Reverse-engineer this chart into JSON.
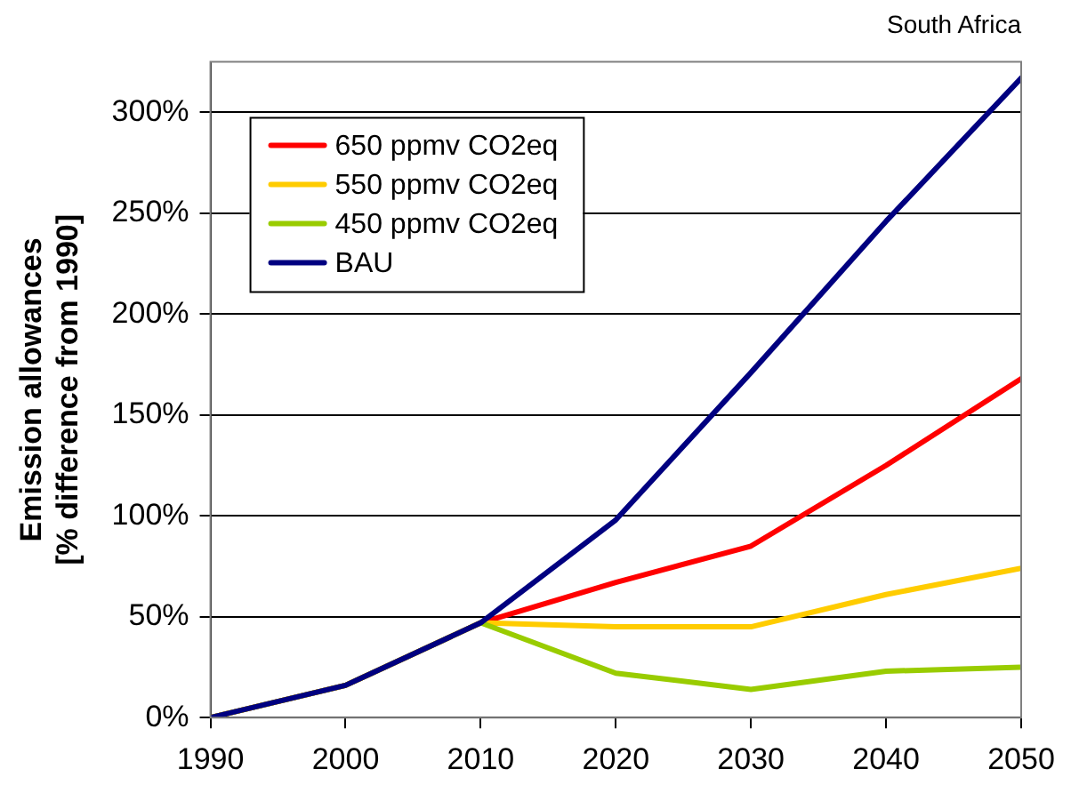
{
  "chart_data": {
    "type": "line",
    "title": "South Africa",
    "ylabel": "Emission allowances\n[% difference from 1990]",
    "x": [
      1990,
      2000,
      2010,
      2020,
      2030,
      2040,
      2050
    ],
    "series": [
      {
        "name": "650 ppmv CO2eq",
        "color": "#ff0000",
        "values": [
          0,
          16,
          47,
          67,
          85,
          125,
          168
        ]
      },
      {
        "name": "550 ppmv CO2eq",
        "color": "#ffcc00",
        "values": [
          0,
          16,
          47,
          45,
          45,
          61,
          74
        ]
      },
      {
        "name": "450 ppmv CO2eq",
        "color": "#99cc00",
        "values": [
          0,
          16,
          47,
          22,
          14,
          23,
          25
        ]
      },
      {
        "name": "BAU",
        "color": "#000080",
        "values": [
          0,
          16,
          47,
          98,
          171,
          246,
          317
        ]
      }
    ],
    "xlim": [
      1990,
      2050
    ],
    "xticks": [
      1990,
      2000,
      2010,
      2020,
      2030,
      2040,
      2050
    ],
    "ylim": [
      0,
      325
    ],
    "yticks": [
      {
        "value": 0,
        "label": "0%"
      },
      {
        "value": 50,
        "label": "50%"
      },
      {
        "value": 100,
        "label": "100%"
      },
      {
        "value": 150,
        "label": "150%"
      },
      {
        "value": 200,
        "label": "200%"
      },
      {
        "value": 250,
        "label": "250%"
      },
      {
        "value": 300,
        "label": "300%"
      }
    ],
    "grid": "y",
    "legend": "top left",
    "marker": "none",
    "line_style": "solid"
  }
}
